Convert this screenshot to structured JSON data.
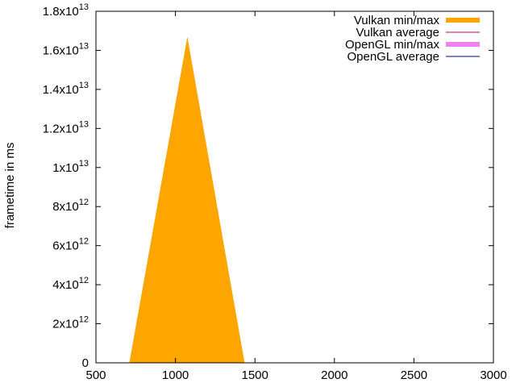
{
  "chart_data": {
    "type": "area",
    "title": "",
    "xlabel": "",
    "ylabel": "frametime in ms",
    "xlim": [
      500,
      3000
    ],
    "ylim": [
      0,
      18000000000000
    ],
    "grid": false,
    "legend_position": "top-right",
    "x_ticks": [
      {
        "value": 500,
        "label": "500"
      },
      {
        "value": 1000,
        "label": "1000"
      },
      {
        "value": 1500,
        "label": "1500"
      },
      {
        "value": 2000,
        "label": "2000"
      },
      {
        "value": 2500,
        "label": "2500"
      },
      {
        "value": 3000,
        "label": "3000"
      }
    ],
    "y_ticks": [
      {
        "value": 0,
        "mantissa": "0",
        "exponent": ""
      },
      {
        "value": 2000000000000,
        "mantissa": "2x10",
        "exponent": "12"
      },
      {
        "value": 4000000000000,
        "mantissa": "4x10",
        "exponent": "12"
      },
      {
        "value": 6000000000000,
        "mantissa": "6x10",
        "exponent": "12"
      },
      {
        "value": 8000000000000,
        "mantissa": "8x10",
        "exponent": "12"
      },
      {
        "value": 10000000000000,
        "mantissa": "1x10",
        "exponent": "13"
      },
      {
        "value": 12000000000000,
        "mantissa": "1.2x10",
        "exponent": "13"
      },
      {
        "value": 14000000000000,
        "mantissa": "1.4x10",
        "exponent": "13"
      },
      {
        "value": 16000000000000,
        "mantissa": "1.6x10",
        "exponent": "13"
      },
      {
        "value": 18000000000000,
        "mantissa": "1.8x10",
        "exponent": "13"
      }
    ],
    "series": [
      {
        "name": "Vulkan min/max",
        "style": "filled",
        "color": "#ffa500",
        "points": [
          {
            "x": 710,
            "y": 0
          },
          {
            "x": 1075,
            "y": 16700000000000
          },
          {
            "x": 1435,
            "y": 0
          }
        ]
      },
      {
        "name": "Vulkan average",
        "style": "line",
        "color": "#c0004a",
        "points": []
      },
      {
        "name": "OpenGL min/max",
        "style": "filled",
        "color": "#ee82ee",
        "points": []
      },
      {
        "name": "OpenGL average",
        "style": "line",
        "color": "#0000a0",
        "points": []
      }
    ]
  }
}
